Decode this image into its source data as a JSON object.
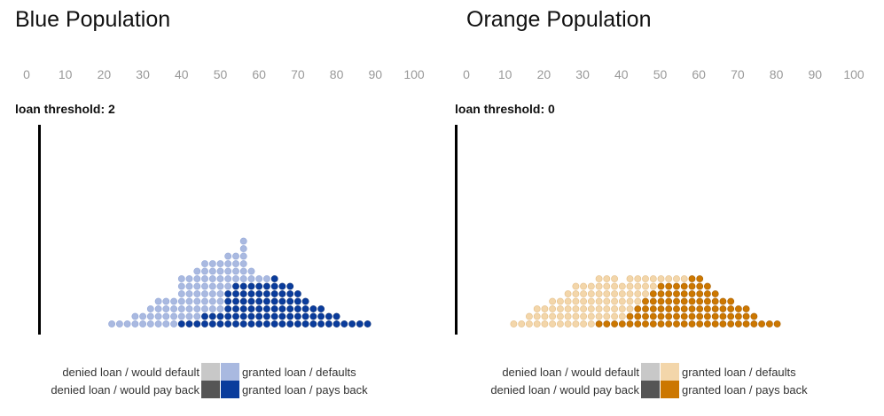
{
  "chart_data": [
    {
      "type": "dot-histogram",
      "title": "Blue Population",
      "x_ticks": [
        "0",
        "10",
        "20",
        "30",
        "40",
        "50",
        "60",
        "70",
        "80",
        "90",
        "100"
      ],
      "xlim": [
        0,
        100
      ],
      "threshold_label": "loan threshold: 2",
      "threshold": 2,
      "bin_width": 2,
      "colors": {
        "denied_default": "#c8c8c8",
        "denied_payback": "#555555",
        "granted_default": "#a9b9e0",
        "granted_payback": "#0a3c9c"
      },
      "legend": {
        "denied_default": "denied loan / would default",
        "denied_payback": "denied loan / would pay back",
        "granted_default": "granted loan / defaults",
        "granted_payback": "granted loan / pays back"
      },
      "columns": [
        {
          "x": 22,
          "light": 1,
          "dark": 0
        },
        {
          "x": 24,
          "light": 1,
          "dark": 0
        },
        {
          "x": 26,
          "light": 1,
          "dark": 0
        },
        {
          "x": 28,
          "light": 2,
          "dark": 0
        },
        {
          "x": 30,
          "light": 2,
          "dark": 0
        },
        {
          "x": 32,
          "light": 3,
          "dark": 0
        },
        {
          "x": 34,
          "light": 4,
          "dark": 0
        },
        {
          "x": 36,
          "light": 4,
          "dark": 0
        },
        {
          "x": 38,
          "light": 4,
          "dark": 0
        },
        {
          "x": 40,
          "light": 6,
          "dark": 1
        },
        {
          "x": 42,
          "light": 6,
          "dark": 1
        },
        {
          "x": 44,
          "light": 7,
          "dark": 1
        },
        {
          "x": 46,
          "light": 7,
          "dark": 2
        },
        {
          "x": 48,
          "light": 7,
          "dark": 2
        },
        {
          "x": 50,
          "light": 7,
          "dark": 2
        },
        {
          "x": 52,
          "light": 5,
          "dark": 5
        },
        {
          "x": 54,
          "light": 4,
          "dark": 6
        },
        {
          "x": 56,
          "light": 6,
          "dark": 6
        },
        {
          "x": 58,
          "light": 2,
          "dark": 6
        },
        {
          "x": 60,
          "light": 1,
          "dark": 6
        },
        {
          "x": 62,
          "light": 1,
          "dark": 6
        },
        {
          "x": 64,
          "light": 0,
          "dark": 7
        },
        {
          "x": 66,
          "light": 0,
          "dark": 6
        },
        {
          "x": 68,
          "light": 0,
          "dark": 6
        },
        {
          "x": 70,
          "light": 0,
          "dark": 5
        },
        {
          "x": 72,
          "light": 0,
          "dark": 4
        },
        {
          "x": 74,
          "light": 0,
          "dark": 3
        },
        {
          "x": 76,
          "light": 0,
          "dark": 3
        },
        {
          "x": 78,
          "light": 0,
          "dark": 2
        },
        {
          "x": 80,
          "light": 0,
          "dark": 2
        },
        {
          "x": 82,
          "light": 0,
          "dark": 1
        },
        {
          "x": 84,
          "light": 0,
          "dark": 1
        },
        {
          "x": 86,
          "light": 0,
          "dark": 1
        },
        {
          "x": 88,
          "light": 0,
          "dark": 1
        }
      ]
    },
    {
      "type": "dot-histogram",
      "title": "Orange Population",
      "x_ticks": [
        "0",
        "10",
        "20",
        "30",
        "40",
        "50",
        "60",
        "70",
        "80",
        "90",
        "100"
      ],
      "xlim": [
        0,
        100
      ],
      "threshold_label": "loan threshold: 0",
      "threshold": 0,
      "bin_width": 2,
      "colors": {
        "denied_default": "#c8c8c8",
        "denied_payback": "#555555",
        "granted_default": "#f3d6aa",
        "granted_payback": "#cc7700"
      },
      "legend": {
        "denied_default": "denied loan / would default",
        "denied_payback": "denied loan / would pay back",
        "granted_default": "granted loan / defaults",
        "granted_payback": "granted loan / pays back"
      },
      "columns": [
        {
          "x": 12,
          "light": 1,
          "dark": 0
        },
        {
          "x": 14,
          "light": 1,
          "dark": 0
        },
        {
          "x": 16,
          "light": 2,
          "dark": 0
        },
        {
          "x": 18,
          "light": 3,
          "dark": 0
        },
        {
          "x": 20,
          "light": 3,
          "dark": 0
        },
        {
          "x": 22,
          "light": 4,
          "dark": 0
        },
        {
          "x": 24,
          "light": 4,
          "dark": 0
        },
        {
          "x": 26,
          "light": 5,
          "dark": 0
        },
        {
          "x": 28,
          "light": 6,
          "dark": 0
        },
        {
          "x": 30,
          "light": 6,
          "dark": 0
        },
        {
          "x": 32,
          "light": 6,
          "dark": 0
        },
        {
          "x": 34,
          "light": 6,
          "dark": 1
        },
        {
          "x": 36,
          "light": 6,
          "dark": 1
        },
        {
          "x": 38,
          "light": 6,
          "dark": 1
        },
        {
          "x": 40,
          "light": 5,
          "dark": 1
        },
        {
          "x": 42,
          "light": 5,
          "dark": 2
        },
        {
          "x": 44,
          "light": 4,
          "dark": 3
        },
        {
          "x": 46,
          "light": 3,
          "dark": 4
        },
        {
          "x": 48,
          "light": 2,
          "dark": 5
        },
        {
          "x": 50,
          "light": 1,
          "dark": 6
        },
        {
          "x": 52,
          "light": 1,
          "dark": 6
        },
        {
          "x": 54,
          "light": 1,
          "dark": 6
        },
        {
          "x": 56,
          "light": 1,
          "dark": 6
        },
        {
          "x": 58,
          "light": 0,
          "dark": 7
        },
        {
          "x": 60,
          "light": 0,
          "dark": 7
        },
        {
          "x": 62,
          "light": 0,
          "dark": 6
        },
        {
          "x": 64,
          "light": 0,
          "dark": 5
        },
        {
          "x": 66,
          "light": 0,
          "dark": 4
        },
        {
          "x": 68,
          "light": 0,
          "dark": 4
        },
        {
          "x": 70,
          "light": 0,
          "dark": 3
        },
        {
          "x": 72,
          "light": 0,
          "dark": 3
        },
        {
          "x": 74,
          "light": 0,
          "dark": 2
        },
        {
          "x": 76,
          "light": 0,
          "dark": 1
        },
        {
          "x": 78,
          "light": 0,
          "dark": 1
        },
        {
          "x": 80,
          "light": 0,
          "dark": 1
        }
      ]
    }
  ]
}
